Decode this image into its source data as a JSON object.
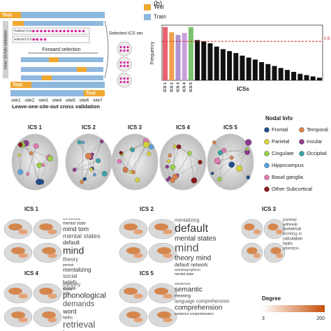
{
  "panel_a": {
    "legend": [
      "Test",
      "Train"
    ],
    "test_label": "Test",
    "inner": "Inner 10-fold validation",
    "ranked": "Ranked ICSs",
    "selected": "selected ICS set",
    "forward": "Forward selection",
    "selected_set": "Selected ICS set",
    "sites": [
      "site1",
      "site2",
      "site3",
      "site4",
      "site5",
      "site6",
      "site7"
    ],
    "caption": "Leave-one-site-out cross validation"
  },
  "chart_data": {
    "type": "bar",
    "panel_label": "(b)",
    "ylabel": "Frequency",
    "xlabel": "ICSs",
    "categories": [
      "ICS 1",
      "ICS 2",
      "ICS 3",
      "ICS 4",
      "ICS 5",
      null,
      null,
      null,
      null,
      null,
      null,
      null,
      null,
      null,
      null,
      null,
      null,
      null,
      null,
      null,
      null,
      null,
      null,
      null,
      null
    ],
    "values": [
      0.82,
      0.74,
      0.7,
      0.73,
      0.82,
      0.62,
      0.6,
      0.57,
      0.52,
      0.48,
      0.45,
      0.42,
      0.38,
      0.35,
      0.32,
      0.28,
      0.25,
      0.22,
      0.19,
      0.16,
      0.13,
      0.1,
      0.08,
      0.06,
      0.04
    ],
    "colors": [
      "#e8626f",
      "#f0a050",
      "#b094d0",
      "#c9a0dc",
      "#7cc070",
      "#111111"
    ],
    "ylim": [
      0,
      0.85
    ],
    "threshold": 0.6,
    "threshold_color": "#d62728"
  },
  "panel_c": {
    "titles": [
      "ICS 1",
      "ICS 2",
      "ICS 3",
      "ICS 4",
      "ICS 5"
    ],
    "legend_title": "Nodal Info",
    "legend": [
      {
        "name": "Frontal",
        "color": "#1f4e8c"
      },
      {
        "name": "Temporal",
        "color": "#d9824b"
      },
      {
        "name": "Parietal",
        "color": "#d6d23a"
      },
      {
        "name": "Insular",
        "color": "#8e3a8e"
      },
      {
        "name": "Cingulate",
        "color": "#9bcf4a"
      },
      {
        "name": "Occipital",
        "color": "#3aa3a8"
      },
      {
        "name": "Hippocampus",
        "color": "#5aa0d8"
      },
      {
        "name": "Basal ganglia",
        "color": "#e07ab0"
      },
      {
        "name": "Other Subcortical",
        "color": "#8b1a1a"
      }
    ]
  },
  "panel_d": {
    "modules": [
      {
        "title": "ICS 1",
        "words": [
          "self referential",
          "mental state",
          "mind tom",
          "mental states",
          "default",
          "mind",
          "theory",
          "person",
          "mentalizing",
          "social",
          "beliefs",
          "insula",
          "tom"
        ]
      },
      {
        "title": "ICS 2",
        "words": [
          "mentalizing",
          "default",
          "mental states",
          "mind",
          "theory mind",
          "default network",
          "autobiographical",
          "mental state"
        ]
      },
      {
        "title": "ICS 3",
        "words": [
          "parietal",
          "arithmetic",
          "numerical",
          "working m",
          "calculation",
          "tasks",
          "attention"
        ]
      },
      {
        "title": "ICS 4",
        "words": [
          "memory",
          "words",
          "phonological",
          "demands",
          "word",
          "tasks",
          "retrieval",
          "language",
          "semantic"
        ]
      },
      {
        "title": "ICS 5",
        "words": [
          "sentences",
          "semantic",
          "meaning",
          "language comprehension",
          "comprehension",
          "sentence comprehension"
        ]
      }
    ],
    "colorbar_title": "Degree",
    "colorbar_min": 3,
    "colorbar_max": 200
  }
}
